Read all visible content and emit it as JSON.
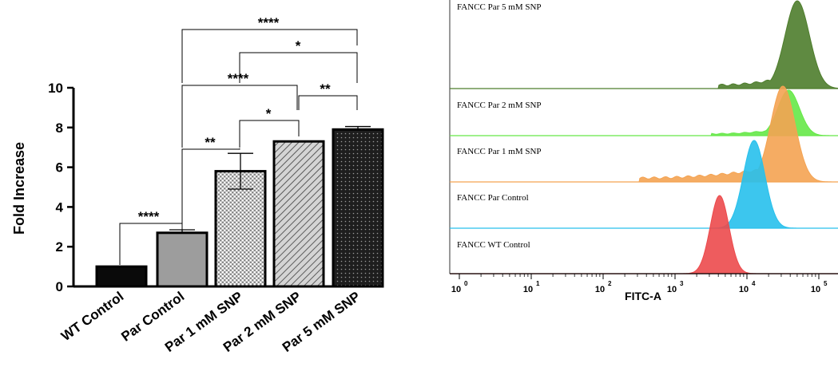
{
  "chart_data": [
    {
      "type": "bar",
      "ylabel": "Fold Increase",
      "xlabel": "",
      "ylim": [
        0,
        10
      ],
      "yticks": [
        "0",
        "2",
        "4",
        "6",
        "8",
        "10"
      ],
      "categories": [
        "WT Control",
        "Par Control",
        "Par 1 mM SNP",
        "Par 2 mM SNP",
        "Par 5 mM SNP"
      ],
      "values": [
        1.0,
        2.7,
        5.8,
        7.3,
        7.9
      ],
      "error_high": [
        1.0,
        2.85,
        6.7,
        7.32,
        8.05
      ],
      "error_low": [
        1.0,
        2.7,
        4.9,
        7.3,
        7.9
      ],
      "patterns": [
        "solid-black",
        "solid-gray",
        "checker",
        "diagonal-hatch",
        "dots"
      ],
      "significance": [
        {
          "from": 0,
          "to": 1,
          "label": "****"
        },
        {
          "from": 1,
          "to": 2,
          "label": "**"
        },
        {
          "from": 2,
          "to": 3,
          "label": "*"
        },
        {
          "from": 3,
          "to": 4,
          "label": "**"
        },
        {
          "from": 1,
          "to": 3,
          "label": "****"
        },
        {
          "from": 2,
          "to": 4,
          "label": "*"
        },
        {
          "from": 1,
          "to": 4,
          "label": "****"
        }
      ]
    },
    {
      "type": "area",
      "xlabel": "FITC-A",
      "xscale": "log",
      "xlim_exponent": [
        0,
        5
      ],
      "xtick_base": "10",
      "xtick_exponents": [
        "0",
        "1",
        "2",
        "3",
        "4",
        "5"
      ],
      "series": [
        {
          "name": "FANCC Par 5 mM SNP",
          "color": "#4e7d2c",
          "peak_log": 4.7,
          "width": 0.17,
          "shoulder_log": 3.6
        },
        {
          "name": "FANCC Par 2 mM SNP",
          "color": "#66e848",
          "peak_log": 4.58,
          "width": 0.15,
          "shoulder_log": 3.5
        },
        {
          "name": "FANCC Par 1 mM SNP",
          "color": "#f4a352",
          "peak_log": 4.5,
          "width": 0.17,
          "shoulder_log": 2.5
        },
        {
          "name": "FANCC Par Control",
          "color": "#27c0ec",
          "peak_log": 4.1,
          "width": 0.15,
          "shoulder_log": 0
        },
        {
          "name": "FANCC WT Control",
          "color": "#ec4a4c",
          "peak_log": 3.62,
          "width": 0.13,
          "shoulder_log": 0
        }
      ]
    }
  ]
}
